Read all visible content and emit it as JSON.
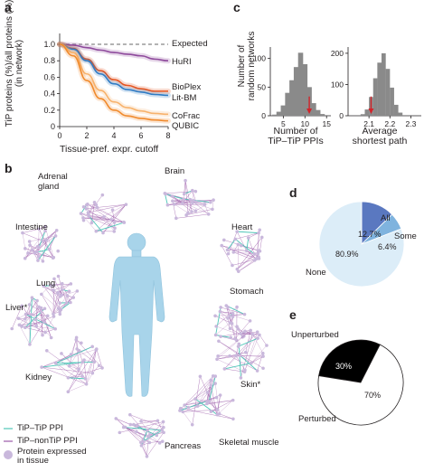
{
  "panels": {
    "a": "a",
    "b": "b",
    "c": "c",
    "d": "d",
    "e": "e"
  },
  "panel_a": {
    "ylabel_line1": "TiP proteins (%)/all proteins (%)",
    "ylabel_line2": "(in network)",
    "xlabel": "Tissue-pref. expr. cutoff",
    "series_labels": [
      "Expected",
      "HuRI",
      "BioPlex",
      "Lit-BM",
      "CoFrac",
      "QUBIC"
    ]
  },
  "panel_b": {
    "tissues": [
      "Adrenal gland",
      "Brain",
      "Intestine",
      "Heart",
      "Lung",
      "Stomach",
      "Liver*",
      "Kidney",
      "Skin*",
      "Pancreas",
      "Skeletal muscle"
    ],
    "adrenal_l1": "Adrenal",
    "adrenal_l2": "gland",
    "legend": {
      "tip_tip": "TiP–TiP PPI",
      "tip_nontip": "TiP–nonTiP PPI",
      "protein_l1": "Protein expressed",
      "protein_l2": "in tissue"
    },
    "colors": {
      "tip_tip": "#4fc6b8",
      "tip_nontip": "#9b5aa8",
      "node": "#c9b8dc",
      "body": "#a8d4ea"
    }
  },
  "panel_c": {
    "ylabel_line1": "Number of",
    "ylabel_line2": "random networks",
    "left_xlabel_line1": "Number of",
    "left_xlabel_line2": "TiP–TiP PPIs",
    "right_xlabel_line1": "Average",
    "right_xlabel_line2": "shortest path"
  },
  "panel_d": {
    "labels": {
      "all": "All",
      "some": "Some",
      "none": "None"
    },
    "pct": {
      "all": "12.7%",
      "some": "6.4%",
      "none": "80.9%"
    },
    "colors": {
      "all": "#5a78c0",
      "some": "#7fb3de",
      "none": "#dcedf8"
    }
  },
  "panel_e": {
    "labels": {
      "unperturbed": "Unperturbed",
      "perturbed": "Perturbed"
    },
    "pct": {
      "unperturbed": "30%",
      "perturbed": "70%"
    },
    "colors": {
      "unperturbed": "#000000",
      "perturbed": "#ffffff"
    }
  },
  "chart_data": [
    {
      "type": "line",
      "ylabel": "TiP proteins (%)/all proteins (%) (in network)",
      "xlabel": "Tissue-pref. expr. cutoff",
      "xlim": [
        0,
        8
      ],
      "ylim": [
        0,
        1.0
      ],
      "xticks": [
        "0",
        "2",
        "4",
        "6",
        "8"
      ],
      "yticks": [
        "0",
        "0.2",
        "0.4",
        "0.6",
        "0.8",
        "1.0"
      ],
      "x": [
        0,
        1,
        2,
        3,
        4,
        5,
        6,
        7,
        8
      ],
      "series": [
        {
          "name": "Expected",
          "color": "#9a9a9a",
          "dashed": true,
          "values": [
            1,
            1,
            1,
            1,
            1,
            1,
            1,
            1,
            1
          ]
        },
        {
          "name": "HuRI",
          "color": "#8e4a9c",
          "values": [
            1,
            0.99,
            0.96,
            0.93,
            0.9,
            0.88,
            0.86,
            0.82,
            0.8
          ]
        },
        {
          "name": "BioPlex",
          "color": "#e5541f",
          "values": [
            1,
            0.95,
            0.82,
            0.68,
            0.57,
            0.5,
            0.46,
            0.43,
            0.43
          ]
        },
        {
          "name": "Lit-BM",
          "color": "#2e7bc4",
          "values": [
            1,
            0.94,
            0.8,
            0.64,
            0.52,
            0.45,
            0.42,
            0.39,
            0.38
          ]
        },
        {
          "name": "CoFrac",
          "color": "#f7b26c",
          "values": [
            1,
            0.9,
            0.64,
            0.44,
            0.3,
            0.23,
            0.19,
            0.16,
            0.15
          ]
        },
        {
          "name": "QUBIC",
          "color": "#f08a2c",
          "values": [
            1,
            0.86,
            0.56,
            0.34,
            0.2,
            0.13,
            0.1,
            0.08,
            0.07
          ]
        }
      ]
    },
    {
      "type": "bar",
      "title": "Number of TiP–TiP PPIs",
      "ylabel": "Number of random networks",
      "xlim": [
        2,
        16
      ],
      "ylim": [
        0,
        120
      ],
      "xticks": [
        "5",
        "10",
        "15"
      ],
      "yticks": [
        "0",
        "50",
        "100"
      ],
      "bins": [
        3,
        4,
        5,
        6,
        7,
        8,
        9,
        10,
        11,
        12,
        13,
        14
      ],
      "values": [
        2,
        7,
        18,
        40,
        62,
        85,
        110,
        90,
        50,
        22,
        10,
        3
      ],
      "observed": 11
    },
    {
      "type": "bar",
      "title": "Average shortest path",
      "xlim": [
        2.0,
        2.35
      ],
      "ylim": [
        0,
        220
      ],
      "xticks": [
        "2.1",
        "2.2",
        "2.3"
      ],
      "yticks": [
        "0",
        "100",
        "200"
      ],
      "bins": [
        2.07,
        2.09,
        2.11,
        2.13,
        2.15,
        2.17,
        2.19,
        2.21,
        2.23,
        2.25
      ],
      "values": [
        5,
        20,
        60,
        120,
        170,
        200,
        150,
        90,
        35,
        10
      ],
      "observed": 2.11
    },
    {
      "type": "pie",
      "categories": [
        "All",
        "Some",
        "None"
      ],
      "values": [
        12.7,
        6.4,
        80.9
      ]
    },
    {
      "type": "pie",
      "categories": [
        "Unperturbed",
        "Perturbed"
      ],
      "values": [
        30,
        70
      ]
    }
  ]
}
